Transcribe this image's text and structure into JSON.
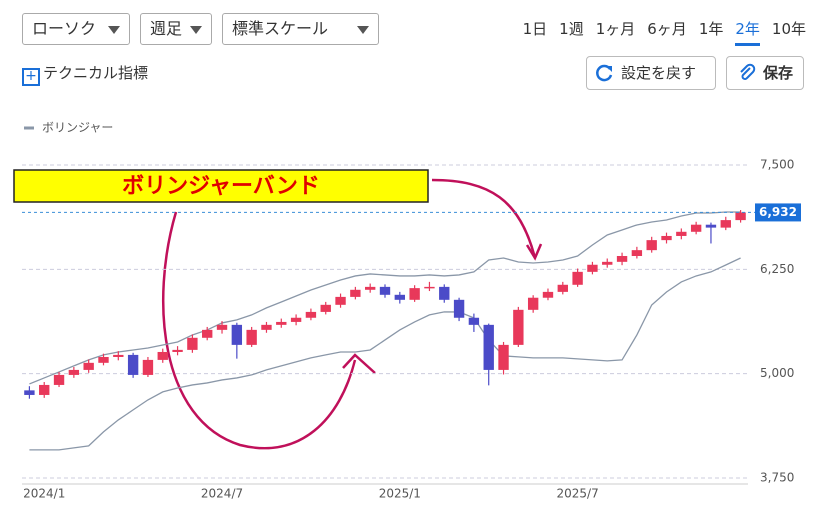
{
  "toolbar": {
    "chart_type": "ローソク",
    "period": "週足",
    "scale": "標準スケール",
    "ranges": [
      "1日",
      "1週",
      "1ヶ月",
      "6ヶ月",
      "1年",
      "2年",
      "10年"
    ],
    "active_range": 5,
    "technical": "テクニカル指標",
    "reset": "設定を戻す",
    "save": "保存"
  },
  "chart_data": {
    "type": "candlestick",
    "legend": "ボリンジャー",
    "annotation": "ボリンジャーバンド",
    "categories": [
      null,
      "2024/1",
      null,
      null,
      null,
      null,
      null,
      null,
      null,
      null,
      null,
      null,
      null,
      "2024/7",
      null,
      null,
      null,
      null,
      null,
      null,
      null,
      null,
      null,
      null,
      null,
      "2025/1",
      null,
      null,
      null,
      null,
      null,
      null,
      null,
      null,
      null,
      null,
      null,
      "2025/7",
      null,
      null,
      null,
      null,
      null,
      null,
      null,
      null,
      null,
      null,
      null
    ],
    "open": [
      4800,
      4745,
      4865,
      4985,
      5045,
      5130,
      5200,
      5225,
      4985,
      5165,
      5260,
      5285,
      5430,
      5525,
      5585,
      5345,
      5525,
      5585,
      5620,
      5670,
      5740,
      5825,
      5920,
      6005,
      6040,
      5945,
      5885,
      6025,
      6040,
      5885,
      5670,
      5585,
      5045,
      5345,
      5765,
      5910,
      5980,
      6065,
      6220,
      6305,
      6340,
      6410,
      6480,
      6600,
      6650,
      6700,
      6785,
      6750,
      6840
    ],
    "high": [
      4850,
      4900,
      5020,
      5080,
      5170,
      5240,
      5270,
      5250,
      5200,
      5300,
      5330,
      5470,
      5560,
      5630,
      5610,
      5560,
      5620,
      5660,
      5710,
      5780,
      5860,
      5960,
      6040,
      6080,
      6070,
      5980,
      6060,
      6100,
      6070,
      5910,
      5720,
      5600,
      5380,
      5800,
      5940,
      6020,
      6100,
      6260,
      6340,
      6380,
      6450,
      6520,
      6640,
      6690,
      6740,
      6820,
      6810,
      6880,
      6960
    ],
    "low": [
      4700,
      4710,
      4840,
      4950,
      5010,
      5100,
      5160,
      4950,
      4960,
      5130,
      5220,
      5250,
      5400,
      5480,
      5180,
      5320,
      5490,
      5550,
      5580,
      5640,
      5710,
      5790,
      5890,
      5970,
      5910,
      5840,
      5860,
      5990,
      5850,
      5630,
      5500,
      4860,
      4990,
      5320,
      5730,
      5880,
      5950,
      6040,
      6190,
      6270,
      6300,
      6380,
      6450,
      6560,
      6610,
      6670,
      6560,
      6720,
      6810
    ],
    "close": [
      4745,
      4865,
      4985,
      5045,
      5130,
      5200,
      5225,
      4985,
      5165,
      5260,
      5285,
      5430,
      5525,
      5585,
      5345,
      5525,
      5585,
      5620,
      5670,
      5740,
      5825,
      5920,
      6005,
      6040,
      5945,
      5885,
      6025,
      6040,
      5885,
      5670,
      5585,
      5045,
      5345,
      5765,
      5910,
      5980,
      6065,
      6220,
      6305,
      6340,
      6410,
      6480,
      6600,
      6650,
      6700,
      6785,
      6750,
      6840,
      6932
    ],
    "up_color": "#e8385a",
    "down_color": "#4b4bc8",
    "bands": {
      "color": "#8a97a8",
      "upper": [
        4877,
        4949,
        5021,
        5093,
        5165,
        5225,
        5260,
        5284,
        5308,
        5344,
        5380,
        5464,
        5524,
        5608,
        5644,
        5704,
        5788,
        5859,
        5931,
        6003,
        6063,
        6123,
        6171,
        6195,
        6183,
        6171,
        6171,
        6183,
        6171,
        6183,
        6219,
        6362,
        6386,
        6338,
        6326,
        6338,
        6362,
        6410,
        6542,
        6662,
        6722,
        6782,
        6817,
        6841,
        6889,
        6925,
        6925,
        6937,
        6937
      ],
      "lower": [
        4087,
        4087,
        4087,
        4111,
        4135,
        4303,
        4446,
        4566,
        4686,
        4782,
        4829,
        4865,
        4889,
        4925,
        4949,
        4985,
        5045,
        5093,
        5141,
        5189,
        5225,
        5260,
        5260,
        5284,
        5404,
        5524,
        5620,
        5704,
        5740,
        5740,
        5668,
        5404,
        5213,
        5201,
        5189,
        5189,
        5189,
        5177,
        5165,
        5153,
        5165,
        5464,
        5823,
        5979,
        6099,
        6171,
        6219,
        6302,
        6386
      ]
    },
    "ylim": [
      3750,
      7680
    ],
    "yticks": [
      {
        "value": 3750,
        "label": "3,750"
      },
      {
        "value": 5000,
        "label": "5,000"
      },
      {
        "value": 6250,
        "label": "6,250"
      },
      {
        "value": 7500,
        "label": "7,500"
      }
    ],
    "last_price": {
      "value": 6932,
      "label": "6,932"
    },
    "grid": true
  }
}
